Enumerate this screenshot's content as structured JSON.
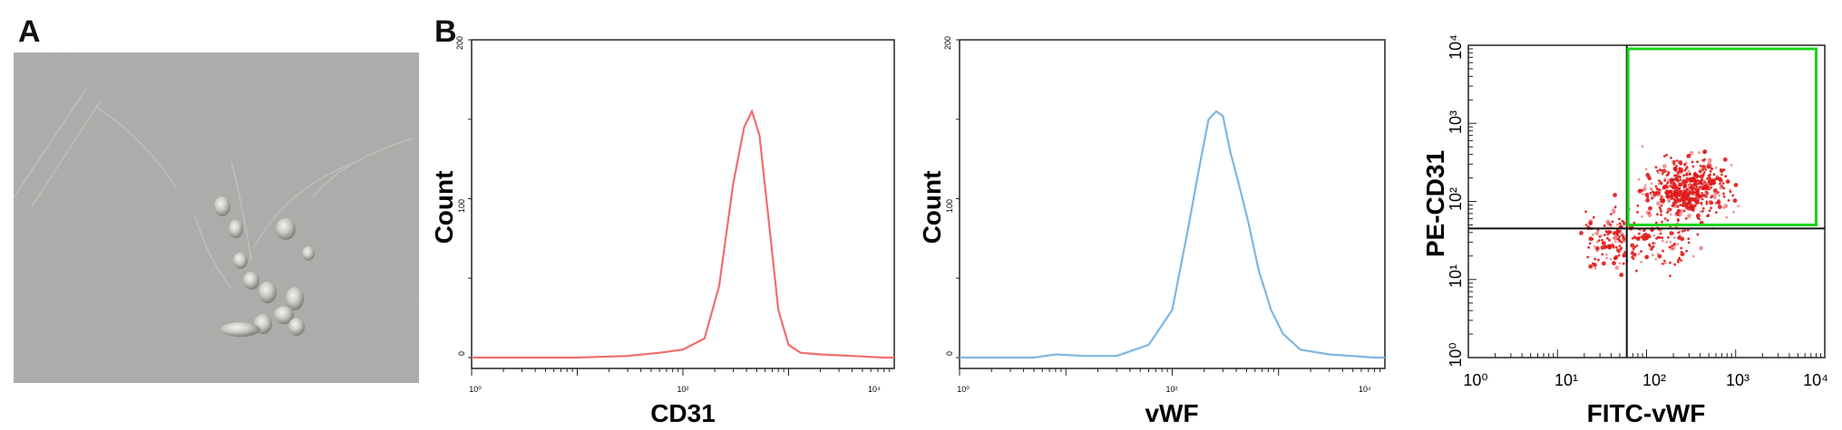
{
  "panels": {
    "a": "A",
    "b": "B"
  },
  "colors": {
    "cd31": "#f26d6d",
    "vwf": "#7fb6e0",
    "dots": "#e01818",
    "gate": "#18d418"
  },
  "chart_data": [
    {
      "type": "line",
      "xlabel": "CD31",
      "ylabel": "Count",
      "xscale": "log",
      "xlim": [
        1,
        10000
      ],
      "ylim": [
        0,
        200
      ],
      "yticks": [
        "0",
        "100",
        "200"
      ],
      "xticks": [
        "10⁰",
        "10²",
        "10⁴"
      ],
      "series": [
        {
          "x": [
            1,
            10,
            30,
            60,
            100,
            160,
            220,
            300,
            380,
            450,
            530,
            640,
            800,
            1000,
            1300,
            2000,
            4000,
            8000,
            12000
          ],
          "values": [
            0,
            0,
            1,
            3,
            5,
            12,
            45,
            110,
            145,
            155,
            140,
            90,
            30,
            8,
            3,
            2,
            1,
            0,
            0
          ]
        }
      ]
    },
    {
      "type": "line",
      "xlabel": "vWF",
      "ylabel": "Count",
      "xscale": "log",
      "xlim": [
        1,
        10000
      ],
      "ylim": [
        0,
        200
      ],
      "yticks": [
        "0",
        "100",
        "200"
      ],
      "xticks": [
        "10⁰",
        "10²",
        "10⁴"
      ],
      "series": [
        {
          "x": [
            1,
            5,
            8,
            15,
            30,
            60,
            100,
            140,
            180,
            220,
            260,
            300,
            350,
            420,
            520,
            650,
            850,
            1100,
            1600,
            3000,
            8000,
            12000
          ],
          "values": [
            0,
            0,
            2,
            1,
            1,
            8,
            30,
            80,
            120,
            150,
            155,
            152,
            130,
            110,
            85,
            55,
            30,
            15,
            5,
            2,
            0,
            0
          ]
        }
      ]
    },
    {
      "type": "scatter",
      "xlabel": "FITC-vWF",
      "ylabel": "PE-CD31",
      "xscale": "log",
      "yscale": "log",
      "xlim": [
        1,
        10000
      ],
      "ylim": [
        1,
        10000
      ],
      "xticks": [
        "10⁰",
        "10¹",
        "10²",
        "10³",
        "10⁴"
      ],
      "yticks": [
        "10⁰",
        "10¹",
        "10²",
        "10³",
        "10⁴"
      ],
      "quadrant_lines": {
        "x": 60,
        "y": 45
      },
      "gate": {
        "x": [
          62,
          8000
        ],
        "y": [
          50,
          9000
        ]
      }
    }
  ]
}
